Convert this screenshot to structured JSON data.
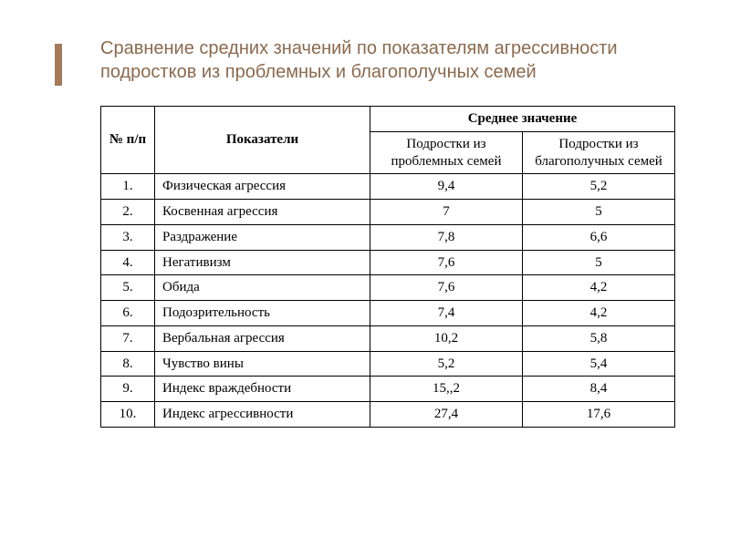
{
  "title": "Сравнение средних значений по показателям агрессивности подростков из проблемных и благополучных семей",
  "table": {
    "type": "table",
    "header": {
      "num": "№ п/п",
      "indicator": "Показатели",
      "mean_group": "Среднее значение",
      "sub_problem": "Подростки из проблемных семей",
      "sub_prosper": "Подростки из благополучных семей"
    },
    "columns": [
      "num",
      "indicator",
      "problem",
      "prosper"
    ],
    "rows": [
      {
        "num": "1.",
        "indicator": "Физическая агрессия",
        "problem": "9,4",
        "prosper": "5,2"
      },
      {
        "num": "2.",
        "indicator": "Косвенная агрессия",
        "problem": "7",
        "prosper": "5"
      },
      {
        "num": "3.",
        "indicator": "Раздражение",
        "problem": "7,8",
        "prosper": "6,6"
      },
      {
        "num": "4.",
        "indicator": "Негативизм",
        "problem": "7,6",
        "prosper": "5"
      },
      {
        "num": "5.",
        "indicator": "Обида",
        "problem": "7,6",
        "prosper": "4,2"
      },
      {
        "num": "6.",
        "indicator": "Подозрительность",
        "problem": "7,4",
        "prosper": "4,2"
      },
      {
        "num": "7.",
        "indicator": "Вербальная агрессия",
        "problem": "10,2",
        "prosper": "5,8"
      },
      {
        "num": "8.",
        "indicator": "Чувство вины",
        "problem": "5,2",
        "prosper": "5,4"
      },
      {
        "num": "9.",
        "indicator": "Индекс враждебности",
        "problem": "15,,2",
        "prosper": "8,4"
      },
      {
        "num": "10.",
        "indicator": "Индекс агрессивности",
        "problem": "27,4",
        "prosper": "17,6"
      }
    ],
    "colors": {
      "border": "#000000",
      "text": "#000000",
      "title": "#8b6a4e",
      "accent": "#a47b5a",
      "background": "#ffffff"
    },
    "font": {
      "title_family": "Arial",
      "title_size_pt": 15,
      "body_family": "Times New Roman",
      "body_size_pt": 11
    }
  }
}
